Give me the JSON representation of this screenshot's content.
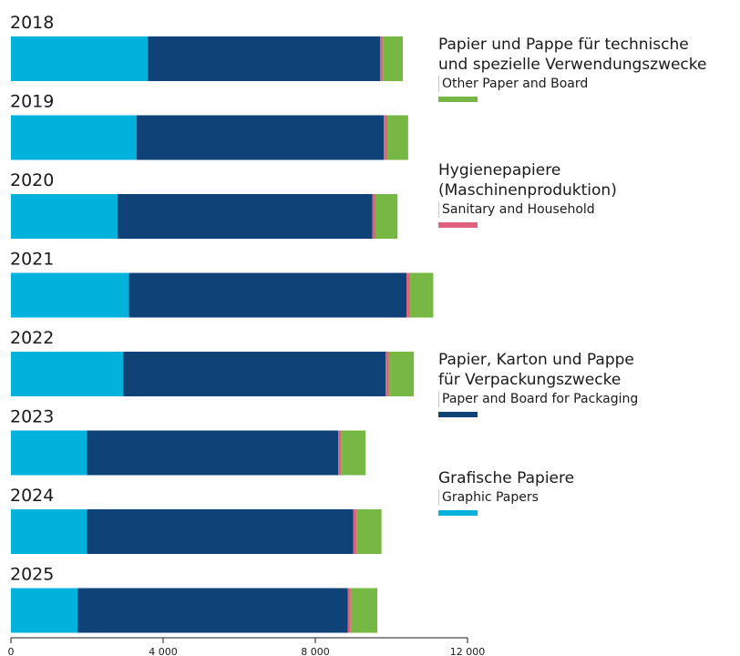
{
  "chart_data": {
    "type": "bar",
    "orientation": "horizontal",
    "stacked": true,
    "categories": [
      "2018",
      "2019",
      "2020",
      "2021",
      "2022",
      "2023",
      "2024",
      "2025"
    ],
    "series": [
      {
        "name": "Graphic Papers",
        "name_de": "Grafische Papiere",
        "color": "#00b2dc",
        "values": [
          3600,
          3300,
          2800,
          3100,
          2950,
          2000,
          2000,
          1750
        ]
      },
      {
        "name": "Paper and Board for Packaging",
        "name_de": [
          "Papier, Karton und Pappe",
          "für Verpackungszwecke"
        ],
        "color": "#0f4277",
        "values": [
          6100,
          6500,
          6700,
          7300,
          6900,
          6600,
          7000,
          7100
        ]
      },
      {
        "name": "Sanitary and Household",
        "name_de": [
          "Hygienepapiere",
          "(Maschinenproduktion)"
        ],
        "color": "#e0607e",
        "values": [
          80,
          80,
          80,
          80,
          80,
          80,
          80,
          80
        ]
      },
      {
        "name": "Other Paper and Board",
        "name_de": [
          "Papier und Pappe für technische",
          "und spezielle Verwendungszwecke"
        ],
        "color": "#76b843",
        "values": [
          520,
          560,
          580,
          620,
          660,
          640,
          660,
          700
        ]
      }
    ],
    "xlim": [
      0,
      12000
    ],
    "x_ticks": [
      "0",
      "4 000",
      "8 000",
      "12 000"
    ],
    "x_tick_values": [
      0,
      4000,
      8000,
      12000
    ],
    "grid": false,
    "legend_placement": "right"
  },
  "legend": {
    "other": {
      "de1": "Papier und Pappe für technische",
      "de2": "und spezielle Verwendungszwecke",
      "en": "Other Paper and Board",
      "color": "#76b843"
    },
    "sanitary": {
      "de1": "Hygienepapiere",
      "de2": "(Maschinenproduktion)",
      "en": "Sanitary and Household",
      "color": "#e0607e"
    },
    "packaging": {
      "de1": "Papier, Karton und Pappe",
      "de2": "für Verpackungszwecke",
      "en": "Paper and Board for Packaging",
      "color": "#0f4277"
    },
    "graphic": {
      "de1": "Grafische Papiere",
      "en": "Graphic Papers",
      "color": "#00b2dc"
    }
  }
}
